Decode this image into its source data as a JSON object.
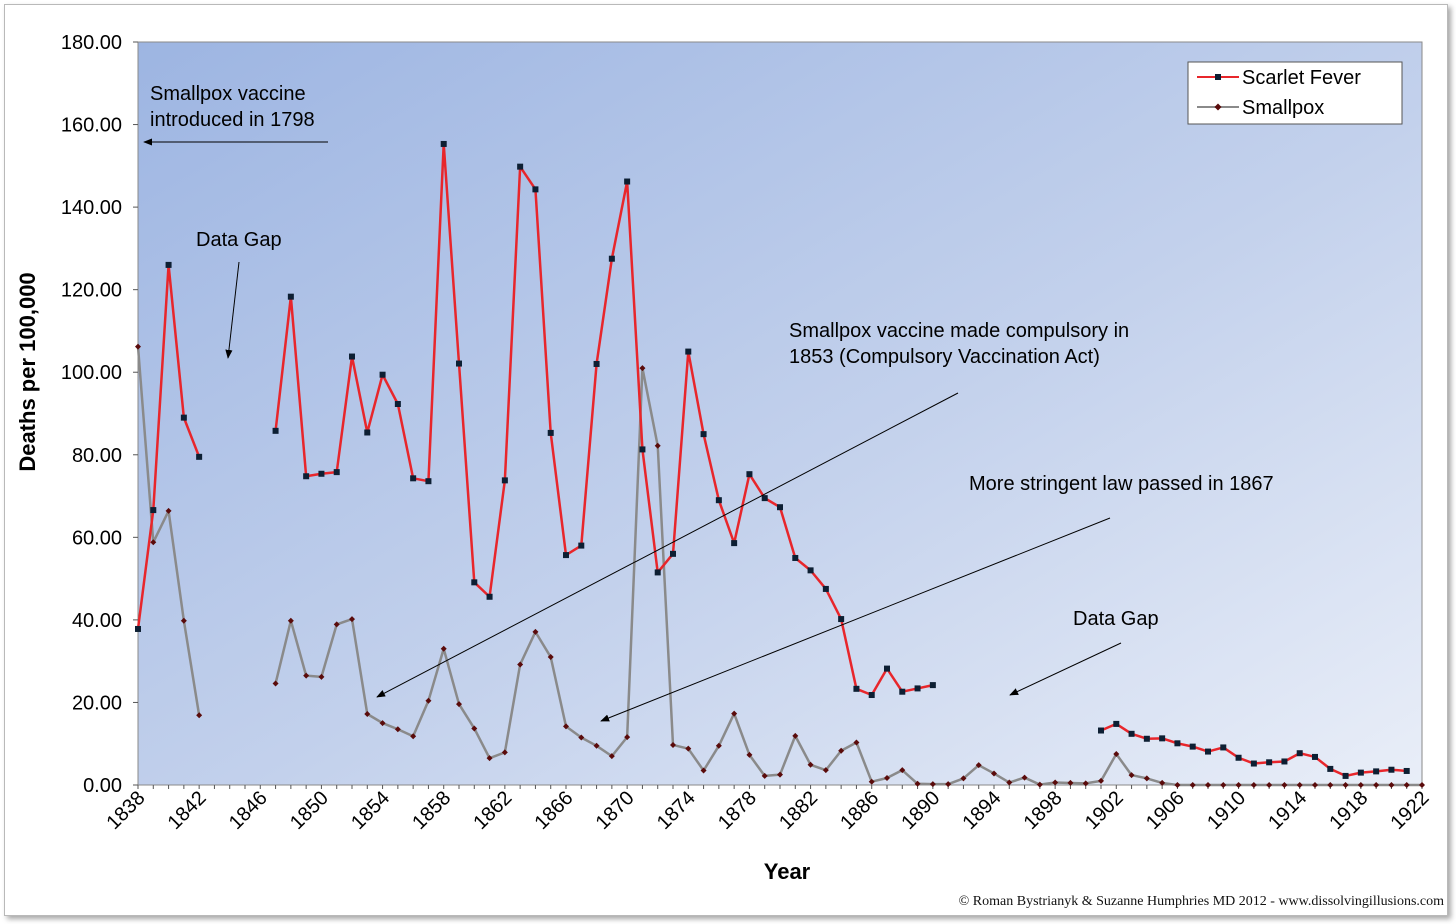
{
  "chart_data": {
    "type": "line",
    "xlabel": "Year",
    "ylabel": "Deaths per 100,000",
    "xlim": [
      1838,
      1922
    ],
    "ylim": [
      0,
      180
    ],
    "x_ticks": [
      "1838",
      "1842",
      "1846",
      "1850",
      "1854",
      "1858",
      "1862",
      "1866",
      "1870",
      "1874",
      "1878",
      "1882",
      "1886",
      "1890",
      "1894",
      "1898",
      "1902",
      "1906",
      "1910",
      "1914",
      "1918",
      "1922"
    ],
    "y_ticks": [
      "0.00",
      "20.00",
      "40.00",
      "60.00",
      "80.00",
      "100.00",
      "120.00",
      "140.00",
      "160.00",
      "180.00"
    ],
    "grid": false,
    "legend_position": "top-right",
    "series": [
      {
        "name": "Scarlet Fever",
        "color": "#e8262b",
        "marker_color": "#0d1f33",
        "marker": "square",
        "segments": [
          [
            [
              1838,
              37.8
            ],
            [
              1839,
              66.6
            ],
            [
              1840,
              126
            ],
            [
              1841,
              89
            ],
            [
              1842,
              79.5
            ]
          ],
          [
            [
              1847,
              85.8
            ],
            [
              1848,
              118.3
            ],
            [
              1849,
              74.8
            ],
            [
              1850,
              75.4
            ],
            [
              1851,
              75.8
            ],
            [
              1852,
              103.8
            ],
            [
              1853,
              85.4
            ],
            [
              1854,
              99.4
            ],
            [
              1855,
              92.3
            ],
            [
              1856,
              74.3
            ],
            [
              1857,
              73.6
            ],
            [
              1858,
              155.3
            ],
            [
              1859,
              102.1
            ],
            [
              1860,
              49.1
            ],
            [
              1861,
              45.6
            ],
            [
              1862,
              73.8
            ],
            [
              1863,
              149.8
            ],
            [
              1864,
              144.3
            ],
            [
              1865,
              85.3
            ],
            [
              1866,
              55.7
            ],
            [
              1867,
              58
            ],
            [
              1868,
              102
            ],
            [
              1869,
              127.5
            ],
            [
              1870,
              146.2
            ],
            [
              1871,
              81.3
            ],
            [
              1872,
              51.5
            ],
            [
              1873,
              56
            ],
            [
              1874,
              105
            ],
            [
              1875,
              85
            ],
            [
              1876,
              69
            ],
            [
              1877,
              58.6
            ],
            [
              1878,
              75.3
            ],
            [
              1879,
              69.5
            ],
            [
              1880,
              67.3
            ],
            [
              1881,
              55
            ],
            [
              1882,
              52
            ],
            [
              1883,
              47.5
            ],
            [
              1884,
              40.2
            ],
            [
              1885,
              23.3
            ],
            [
              1886,
              21.8
            ],
            [
              1887,
              28.2
            ],
            [
              1888,
              22.6
            ],
            [
              1889,
              23.4
            ],
            [
              1890,
              24.2
            ]
          ],
          [
            [
              1901,
              13.2
            ],
            [
              1902,
              14.8
            ],
            [
              1903,
              12.4
            ],
            [
              1904,
              11.2
            ],
            [
              1905,
              11.3
            ],
            [
              1906,
              10.1
            ],
            [
              1907,
              9.3
            ],
            [
              1908,
              8.1
            ],
            [
              1909,
              9.1
            ],
            [
              1910,
              6.6
            ],
            [
              1911,
              5.2
            ],
            [
              1912,
              5.5
            ],
            [
              1913,
              5.7
            ],
            [
              1914,
              7.7
            ],
            [
              1915,
              6.8
            ],
            [
              1916,
              3.9
            ],
            [
              1917,
              2.2
            ],
            [
              1918,
              3
            ],
            [
              1919,
              3.3
            ],
            [
              1920,
              3.7
            ],
            [
              1921,
              3.4
            ]
          ]
        ]
      },
      {
        "name": "Smallpox",
        "color": "#8a8a8a",
        "marker_color": "#5a0b0b",
        "marker": "diamond",
        "segments": [
          [
            [
              1838,
              106.2
            ],
            [
              1839,
              58.8
            ],
            [
              1840,
              66.4
            ],
            [
              1841,
              39.8
            ],
            [
              1842,
              16.9
            ]
          ],
          [
            [
              1847,
              24.6
            ],
            [
              1848,
              39.8
            ],
            [
              1849,
              26.5
            ],
            [
              1850,
              26.2
            ],
            [
              1851,
              38.9
            ],
            [
              1852,
              40.2
            ],
            [
              1853,
              17.2
            ],
            [
              1854,
              15
            ],
            [
              1855,
              13.5
            ],
            [
              1856,
              11.8
            ],
            [
              1857,
              20.4
            ],
            [
              1858,
              33
            ],
            [
              1859,
              19.6
            ],
            [
              1860,
              13.7
            ],
            [
              1861,
              6.5
            ],
            [
              1862,
              7.9
            ],
            [
              1863,
              29.2
            ],
            [
              1864,
              37.1
            ],
            [
              1865,
              31
            ],
            [
              1866,
              14.2
            ],
            [
              1867,
              11.5
            ],
            [
              1868,
              9.5
            ],
            [
              1869,
              7
            ],
            [
              1870,
              11.6
            ],
            [
              1871,
              101
            ],
            [
              1872,
              82.2
            ],
            [
              1873,
              9.7
            ],
            [
              1874,
              8.8
            ],
            [
              1875,
              3.5
            ],
            [
              1876,
              9.5
            ],
            [
              1877,
              17.3
            ],
            [
              1878,
              7.3
            ],
            [
              1879,
              2.2
            ],
            [
              1880,
              2.5
            ],
            [
              1881,
              11.9
            ],
            [
              1882,
              4.9
            ],
            [
              1883,
              3.6
            ],
            [
              1884,
              8.3
            ],
            [
              1885,
              10.3
            ],
            [
              1886,
              0.8
            ],
            [
              1887,
              1.7
            ],
            [
              1888,
              3.6
            ],
            [
              1889,
              0.3
            ],
            [
              1890,
              0.2
            ],
            [
              1891,
              0.2
            ],
            [
              1892,
              1.6
            ],
            [
              1893,
              4.8
            ],
            [
              1894,
              2.8
            ],
            [
              1895,
              0.6
            ],
            [
              1896,
              1.8
            ],
            [
              1897,
              0.1
            ],
            [
              1898,
              0.6
            ],
            [
              1899,
              0.5
            ],
            [
              1900,
              0.4
            ],
            [
              1901,
              1
            ],
            [
              1902,
              7.5
            ],
            [
              1903,
              2.4
            ],
            [
              1904,
              1.6
            ],
            [
              1905,
              0.5
            ],
            [
              1906,
              0
            ],
            [
              1907,
              0
            ],
            [
              1908,
              0
            ],
            [
              1909,
              0
            ],
            [
              1910,
              0
            ],
            [
              1911,
              0
            ],
            [
              1912,
              0
            ],
            [
              1913,
              0
            ],
            [
              1914,
              0
            ],
            [
              1915,
              0
            ],
            [
              1916,
              0
            ],
            [
              1917,
              0
            ],
            [
              1918,
              0
            ],
            [
              1919,
              0
            ],
            [
              1920,
              0
            ],
            [
              1921,
              0
            ],
            [
              1922,
              0
            ]
          ]
        ]
      }
    ],
    "annotations": {
      "smallpox_1798_line1": "Smallpox vaccine",
      "smallpox_1798_line2": "introduced in 1798",
      "data_gap_1": "Data Gap",
      "data_gap_2": "Data Gap",
      "compulsory_line1": "Smallpox vaccine made compulsory in",
      "compulsory_line2": "1853 (Compulsory Vaccination Act)",
      "stringent": "More stringent law passed in 1867"
    }
  },
  "credit": "© Roman Bystrianyk & Suzanne Humphries MD 2012 - www.dissolvingillusions.com"
}
